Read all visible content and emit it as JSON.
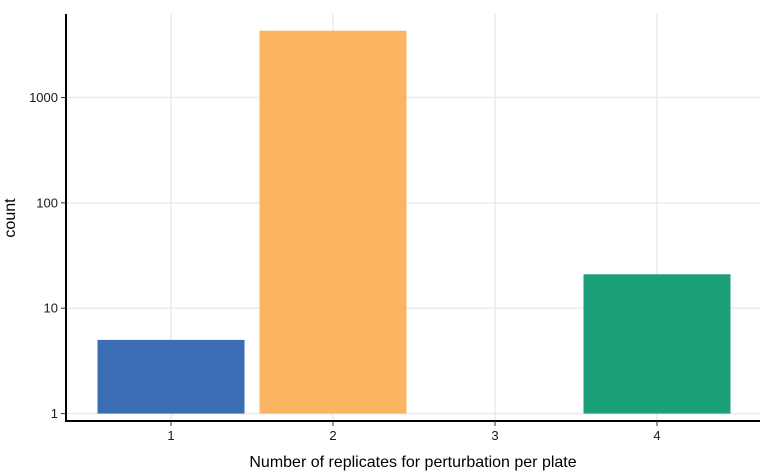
{
  "chart_data": {
    "type": "bar",
    "categories": [
      "1",
      "2",
      "3",
      "4"
    ],
    "values": [
      5,
      4300,
      null,
      21
    ],
    "colors": [
      "#3A6DB4",
      "#FBB461",
      null,
      "#1CA079"
    ],
    "xlabel": "Number of replicates for perturbation per plate",
    "ylabel": "count",
    "y_scale": "log10",
    "ylim": [
      0.85,
      6200
    ],
    "y_ticks": [
      1,
      10,
      100,
      1000
    ],
    "y_tick_labels": [
      "1",
      "10",
      "100",
      "1000"
    ],
    "x_tick_labels": [
      "1",
      "2",
      "3",
      "4"
    ],
    "grid": true,
    "legend": "none"
  }
}
